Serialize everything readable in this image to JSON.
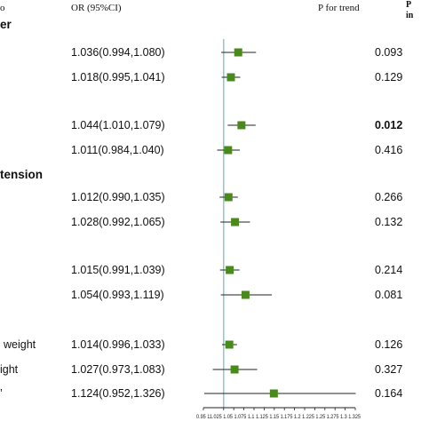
{
  "header": {
    "col1_fragment": "o",
    "or_label": "OR (95%CI)",
    "p_trend_label": "P for trend",
    "p_int_fragment_1": "P",
    "p_int_fragment_2": "in"
  },
  "groups": [
    {
      "label": "er"
    },
    {
      "label": "tension"
    }
  ],
  "row_labels": [
    {
      "label": "weight"
    },
    {
      "label": "ight"
    },
    {
      "label": "’"
    }
  ],
  "chart_data": {
    "type": "forest",
    "title": "",
    "xlabel": "",
    "reference_line": 1.0,
    "xlim": [
      0.95,
      1.325
    ],
    "xticks": [
      "0.95",
      "1",
      "1.025",
      "1.05",
      "1.075",
      "1.1",
      "1.125",
      "1.15",
      "1.175",
      "1.2",
      "1.225",
      "1.25",
      "1.275",
      "1.3",
      "1.325"
    ],
    "tick_label_text": "0.95          11.025 1.05 1.075 1.1 1.125 1.15 1.175 1.2 1.225 1.25 1.275 1.3 1.325",
    "rows": [
      {
        "or_text": "1.036(0.994,1.080)",
        "or": 1.036,
        "lo": 0.994,
        "hi": 1.08,
        "p_trend": "0.093",
        "p_bold": false
      },
      {
        "or_text": "1.018(0.995,1.041)",
        "or": 1.018,
        "lo": 0.995,
        "hi": 1.041,
        "p_trend": "0.129",
        "p_bold": false
      },
      {
        "or_text": "1.044(1.010,1.079)",
        "or": 1.044,
        "lo": 1.01,
        "hi": 1.079,
        "p_trend": "0.012",
        "p_bold": true
      },
      {
        "or_text": "1.011(0.984,1.040)",
        "or": 1.011,
        "lo": 0.984,
        "hi": 1.04,
        "p_trend": "0.416",
        "p_bold": false
      },
      {
        "or_text": "1.012(0.990,1.035)",
        "or": 1.012,
        "lo": 0.99,
        "hi": 1.035,
        "p_trend": "0.266",
        "p_bold": false
      },
      {
        "or_text": "1.028(0.992,1.065)",
        "or": 1.028,
        "lo": 0.992,
        "hi": 1.065,
        "p_trend": "0.132",
        "p_bold": false
      },
      {
        "or_text": "1.015(0.991,1.039)",
        "or": 1.015,
        "lo": 0.991,
        "hi": 1.039,
        "p_trend": "0.214",
        "p_bold": false
      },
      {
        "or_text": "1.054(0.993,1.119)",
        "or": 1.054,
        "lo": 0.993,
        "hi": 1.119,
        "p_trend": "0.081",
        "p_bold": false
      },
      {
        "or_text": "1.014(0.996,1.033)",
        "or": 1.014,
        "lo": 0.996,
        "hi": 1.033,
        "p_trend": "0.126",
        "p_bold": false
      },
      {
        "or_text": "1.027(0.973,1.083)",
        "or": 1.027,
        "lo": 0.973,
        "hi": 1.083,
        "p_trend": "0.327",
        "p_bold": false
      },
      {
        "or_text": "1.124(0.952,1.326)",
        "or": 1.124,
        "lo": 0.952,
        "hi": 1.326,
        "p_trend": "0.164",
        "p_bold": false
      }
    ],
    "colors": {
      "marker": "#4a8a1c",
      "reference_line": "#7fbfc4",
      "ci_line": "#222222"
    }
  }
}
